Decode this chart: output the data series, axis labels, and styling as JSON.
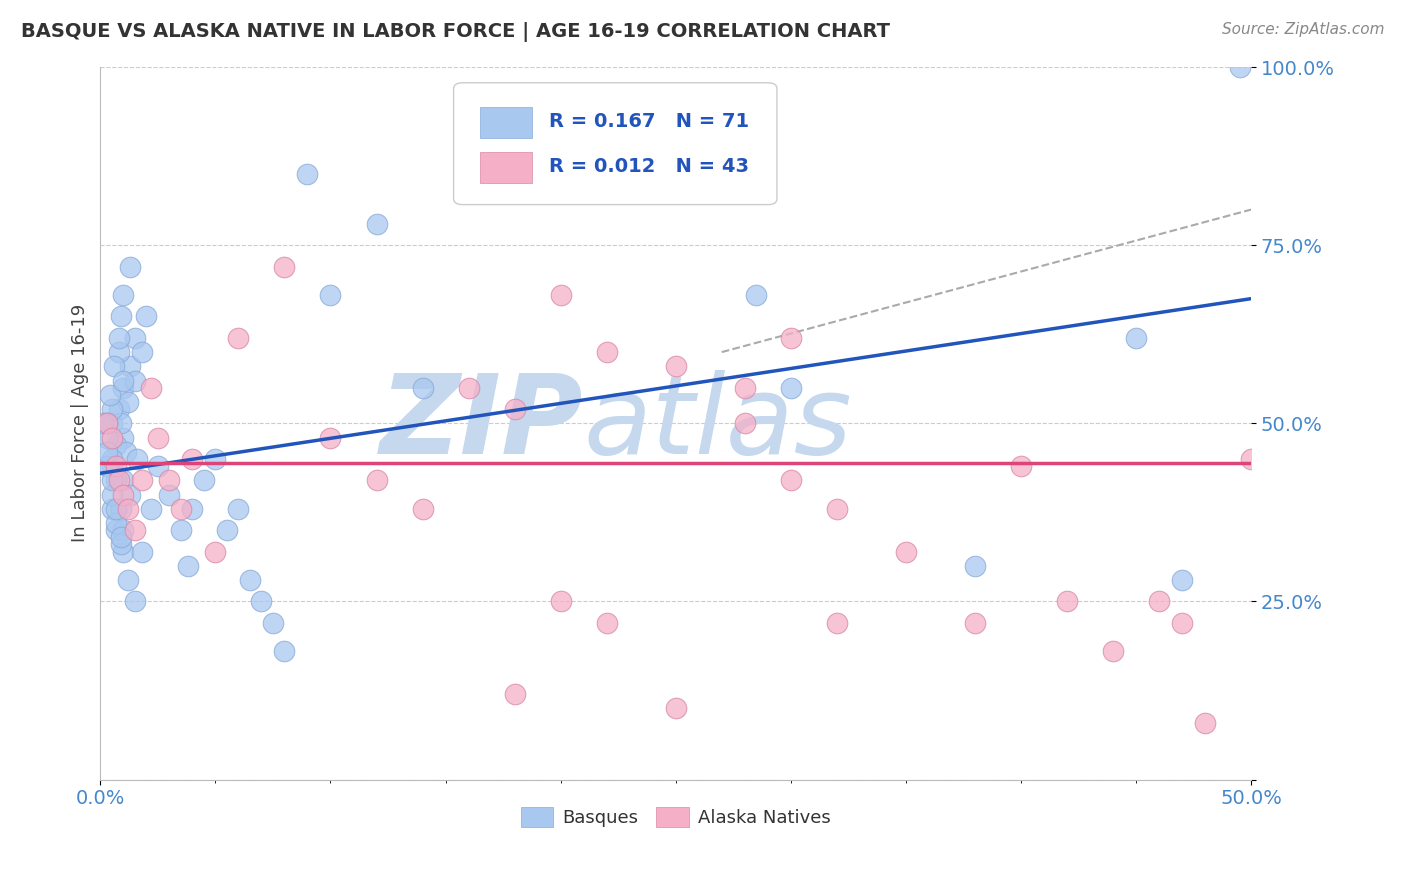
{
  "title": "BASQUE VS ALASKA NATIVE IN LABOR FORCE | AGE 16-19 CORRELATION CHART",
  "source": "Source: ZipAtlas.com",
  "axis_label_y": "In Labor Force | Age 16-19",
  "legend_basque_R": "0.167",
  "legend_basque_N": "71",
  "legend_native_R": "0.012",
  "legend_native_N": "43",
  "basque_color": "#a8c8f0",
  "native_color": "#f5b0c8",
  "basque_line_color": "#2255bb",
  "native_line_color": "#dd4477",
  "dashed_line_color": "#aaaaaa",
  "watermark_color": "#c5d8ee",
  "watermark_text": "ZIPatlas",
  "background_color": "#ffffff",
  "xlim": [
    0.0,
    0.5
  ],
  "ylim": [
    0.0,
    1.0
  ],
  "basque_x": [
    0.005,
    0.008,
    0.01,
    0.01,
    0.012,
    0.013,
    0.015,
    0.015,
    0.018,
    0.02,
    0.005,
    0.007,
    0.009,
    0.01,
    0.011,
    0.013,
    0.016,
    0.005,
    0.007,
    0.01,
    0.003,
    0.005,
    0.008,
    0.009,
    0.01,
    0.013,
    0.005,
    0.007,
    0.009,
    0.01,
    0.003,
    0.004,
    0.006,
    0.008,
    0.01,
    0.003,
    0.005,
    0.007,
    0.009,
    0.001,
    0.003,
    0.005,
    0.007,
    0.009,
    0.012,
    0.015,
    0.018,
    0.022,
    0.025,
    0.03,
    0.035,
    0.038,
    0.04,
    0.045,
    0.05,
    0.055,
    0.06,
    0.065,
    0.07,
    0.075,
    0.08,
    0.09,
    0.1,
    0.12,
    0.14,
    0.285,
    0.3,
    0.38,
    0.45,
    0.47,
    0.495
  ],
  "basque_y": [
    0.5,
    0.52,
    0.55,
    0.48,
    0.53,
    0.58,
    0.62,
    0.56,
    0.6,
    0.65,
    0.44,
    0.47,
    0.5,
    0.42,
    0.46,
    0.4,
    0.45,
    0.38,
    0.35,
    0.32,
    0.48,
    0.52,
    0.6,
    0.65,
    0.68,
    0.72,
    0.45,
    0.42,
    0.38,
    0.35,
    0.5,
    0.54,
    0.58,
    0.62,
    0.56,
    0.44,
    0.4,
    0.36,
    0.33,
    0.5,
    0.46,
    0.42,
    0.38,
    0.34,
    0.28,
    0.25,
    0.32,
    0.38,
    0.44,
    0.4,
    0.35,
    0.3,
    0.38,
    0.42,
    0.45,
    0.35,
    0.38,
    0.28,
    0.25,
    0.22,
    0.18,
    0.85,
    0.68,
    0.78,
    0.55,
    0.68,
    0.55,
    0.3,
    0.62,
    0.28,
    1.0
  ],
  "native_x": [
    0.003,
    0.005,
    0.007,
    0.008,
    0.01,
    0.012,
    0.015,
    0.018,
    0.022,
    0.025,
    0.03,
    0.035,
    0.04,
    0.05,
    0.06,
    0.08,
    0.1,
    0.12,
    0.14,
    0.16,
    0.18,
    0.2,
    0.22,
    0.25,
    0.28,
    0.3,
    0.32,
    0.35,
    0.38,
    0.4,
    0.42,
    0.44,
    0.46,
    0.47,
    0.48,
    0.5,
    0.3,
    0.32,
    0.28,
    0.25,
    0.22,
    0.2,
    0.18
  ],
  "native_y": [
    0.5,
    0.48,
    0.44,
    0.42,
    0.4,
    0.38,
    0.35,
    0.42,
    0.55,
    0.48,
    0.42,
    0.38,
    0.45,
    0.32,
    0.62,
    0.72,
    0.48,
    0.42,
    0.38,
    0.55,
    0.52,
    0.68,
    0.6,
    0.58,
    0.5,
    0.42,
    0.38,
    0.32,
    0.22,
    0.44,
    0.25,
    0.18,
    0.25,
    0.22,
    0.08,
    0.45,
    0.62,
    0.22,
    0.55,
    0.1,
    0.22,
    0.25,
    0.12
  ],
  "blue_line_x0": 0.0,
  "blue_line_y0": 0.43,
  "blue_line_x1": 0.5,
  "blue_line_y1": 0.675,
  "pink_line_x0": 0.0,
  "pink_line_y0": 0.445,
  "pink_line_x1": 0.5,
  "pink_line_y1": 0.445,
  "dash_line_x0": 0.27,
  "dash_line_y0": 0.6,
  "dash_line_x1": 0.5,
  "dash_line_y1": 0.8
}
